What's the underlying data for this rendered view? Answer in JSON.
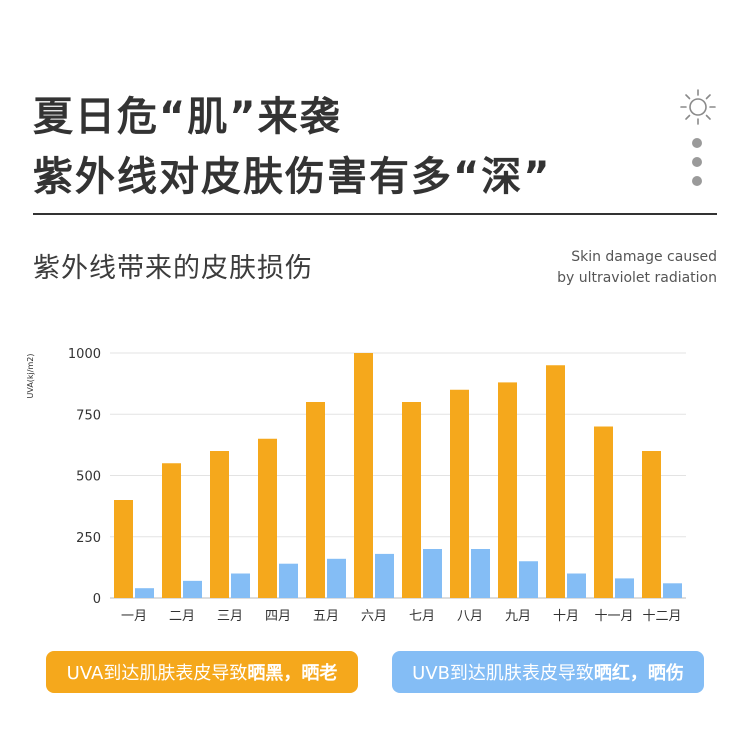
{
  "header": {
    "title_line1": "夏日危“肌”来袭",
    "title_line2": "紫外线对皮肤伤害有多“深”"
  },
  "section": {
    "subtitle": "紫外线带来的皮肤损伤",
    "en_caption_line1": "Skin damage caused",
    "en_caption_line2": "by ultraviolet  radiation"
  },
  "icons": [
    "sun-icon",
    "dot-icon",
    "dot-icon",
    "dot-icon"
  ],
  "chart_data": {
    "type": "bar",
    "ylabel": "UVA(kj/m2)",
    "ylim": [
      0,
      1000
    ],
    "yticks": [
      0,
      250,
      500,
      750,
      1000
    ],
    "grid": true,
    "categories": [
      "一月",
      "二月",
      "三月",
      "四月",
      "五月",
      "六月",
      "七月",
      "八月",
      "九月",
      "十月",
      "十一月",
      "十二月"
    ],
    "series": [
      {
        "color": "#f5a81c",
        "values": [
          400,
          550,
          600,
          650,
          800,
          1000,
          800,
          850,
          880,
          950,
          700,
          600
        ]
      },
      {
        "color": "#84bdf5",
        "values": [
          40,
          70,
          100,
          140,
          160,
          180,
          200,
          200,
          150,
          100,
          80,
          60
        ]
      }
    ]
  },
  "legend": {
    "uva_prefix": "UVA到达肌肤表皮导致",
    "uva_bold": "晒黑，晒老",
    "uva_color": "#f5a81c",
    "uvb_prefix": "UVB到达肌肤表皮导致",
    "uvb_bold": "晒红，晒伤",
    "uvb_color": "#84bdf5"
  }
}
